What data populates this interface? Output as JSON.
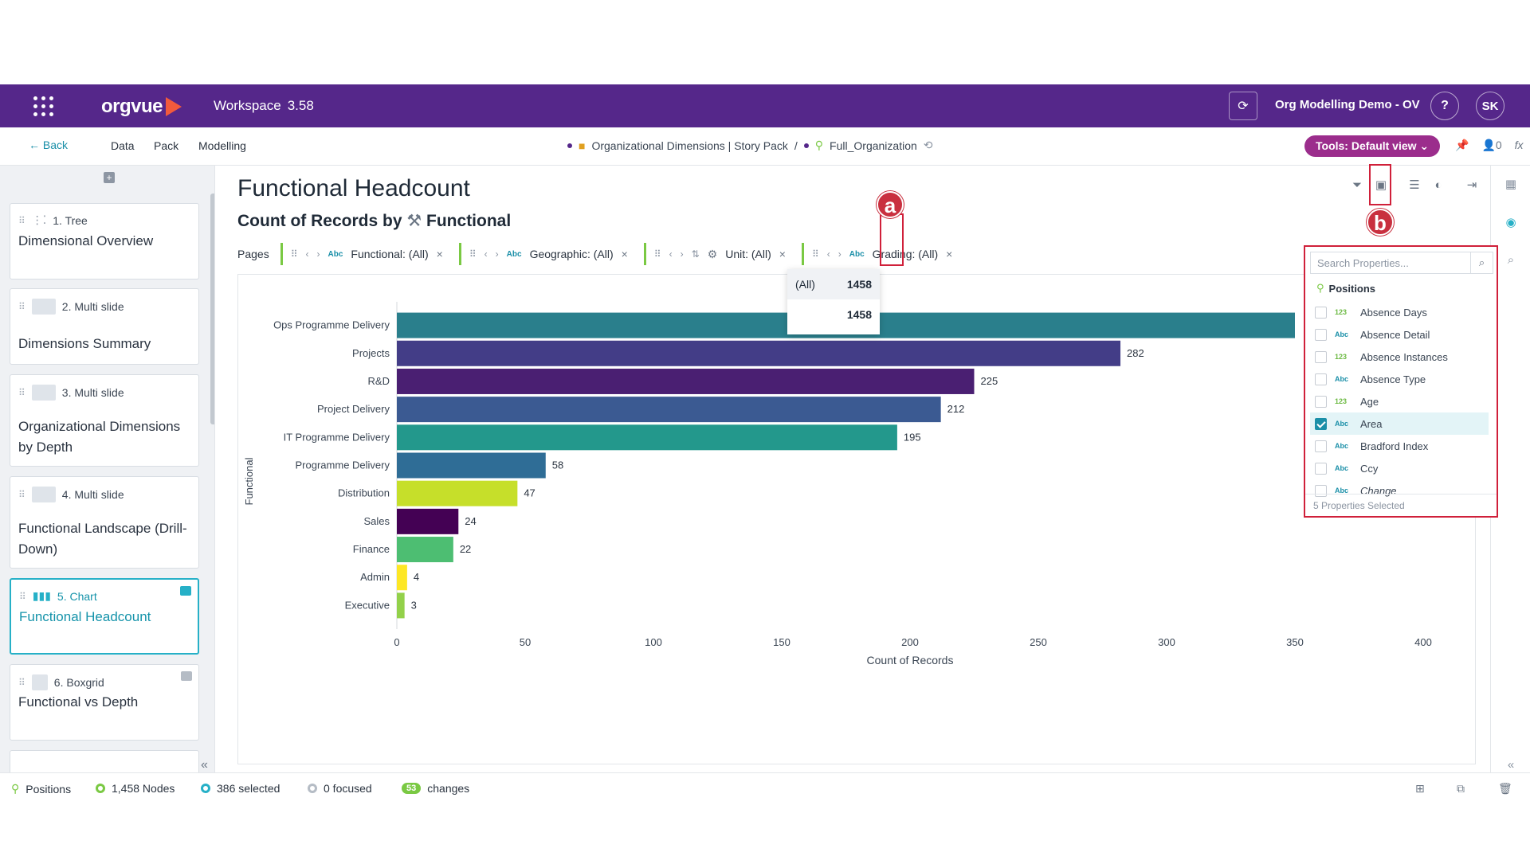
{
  "topbar": {
    "logo": "orgvue",
    "workspace_label": "Workspace",
    "workspace_version": "3.58",
    "org_name": "Org Modelling Demo - OV",
    "help": "?",
    "user_initials": "SK"
  },
  "nav": {
    "back": "Back",
    "menu": [
      "Data",
      "Pack",
      "Modelling"
    ],
    "crumb_pack": "Organizational Dimensions | Story Pack",
    "crumb_sep": "/",
    "crumb_dataset": "Full_Organization",
    "tools_label": "Tools: Default view",
    "pin_count": "0",
    "fx": "fx"
  },
  "sidebar": {
    "cards": [
      {
        "sub": "1. Tree",
        "title": "Dimensional Overview"
      },
      {
        "sub": "2. Multi slide",
        "title": "Dimensions Summary"
      },
      {
        "sub": "3. Multi slide",
        "title": "Organizational Dimensions by Depth"
      },
      {
        "sub": "4. Multi slide",
        "title": "Functional Landscape (Drill-Down)"
      },
      {
        "sub": "5. Chart",
        "title": "Functional Headcount"
      },
      {
        "sub": "6. Boxgrid",
        "title": "Functional vs Depth"
      }
    ]
  },
  "main": {
    "title": "Functional Headcount",
    "subtitle_prefix": "Count of Records by",
    "subtitle_dim": "Functional",
    "pages_label": "Pages",
    "filters": [
      {
        "label": "Functional: (All)",
        "type": "Abc"
      },
      {
        "label": "Geographic: (All)",
        "type": "Abc"
      },
      {
        "label": "Unit: (All)",
        "type": ""
      },
      {
        "label": "Grading: (All)",
        "type": "Abc"
      }
    ],
    "markers": {
      "a": "a",
      "b": "b"
    }
  },
  "unit_dropdown": {
    "rows": [
      {
        "label": "(All)",
        "count": "1458"
      },
      {
        "label": "",
        "count": "1458"
      }
    ]
  },
  "chart_data": {
    "type": "bar",
    "orientation": "horizontal",
    "categories": [
      "Ops Programme Delivery",
      "Projects",
      "R&D",
      "Project Delivery",
      "IT Programme Delivery",
      "Programme Delivery",
      "Distribution",
      "Sales",
      "Finance",
      "Admin",
      "Executive"
    ],
    "values": [
      350,
      282,
      225,
      212,
      195,
      58,
      47,
      24,
      22,
      4,
      3
    ],
    "value_labels": [
      "",
      "282",
      "225",
      "212",
      "195",
      "58",
      "47",
      "24",
      "22",
      "4",
      "3"
    ],
    "colors": [
      "#2a7f8c",
      "#433d87",
      "#4a1f72",
      "#3b5a92",
      "#23988c",
      "#2f6d96",
      "#c6df2a",
      "#440154",
      "#4dbe72",
      "#fde725",
      "#93d14a"
    ],
    "xlabel": "Count of Records",
    "ylabel": "Functional",
    "xlim": [
      0,
      400
    ],
    "xticks": [
      0,
      50,
      100,
      150,
      200,
      250,
      300,
      350,
      400
    ]
  },
  "properties": {
    "search_placeholder": "Search Properties...",
    "group": "Positions",
    "items": [
      {
        "type": "123",
        "label": "Absence Days",
        "checked": false
      },
      {
        "type": "Abc",
        "label": "Absence Detail",
        "checked": false
      },
      {
        "type": "123",
        "label": "Absence Instances",
        "checked": false
      },
      {
        "type": "Abc",
        "label": "Absence Type",
        "checked": false
      },
      {
        "type": "123",
        "label": "Age",
        "checked": false
      },
      {
        "type": "Abc",
        "label": "Area",
        "checked": true
      },
      {
        "type": "Abc",
        "label": "Bradford Index",
        "checked": false
      },
      {
        "type": "Abc",
        "label": "Ccy",
        "checked": false
      },
      {
        "type": "Abc",
        "label": "Change",
        "checked": false
      }
    ],
    "footer": "5 Properties Selected"
  },
  "status": {
    "positions": "Positions",
    "nodes": "1,458 Nodes",
    "selected": "386 selected",
    "focused": "0 focused",
    "changes_count": "53",
    "changes_label": "changes"
  }
}
